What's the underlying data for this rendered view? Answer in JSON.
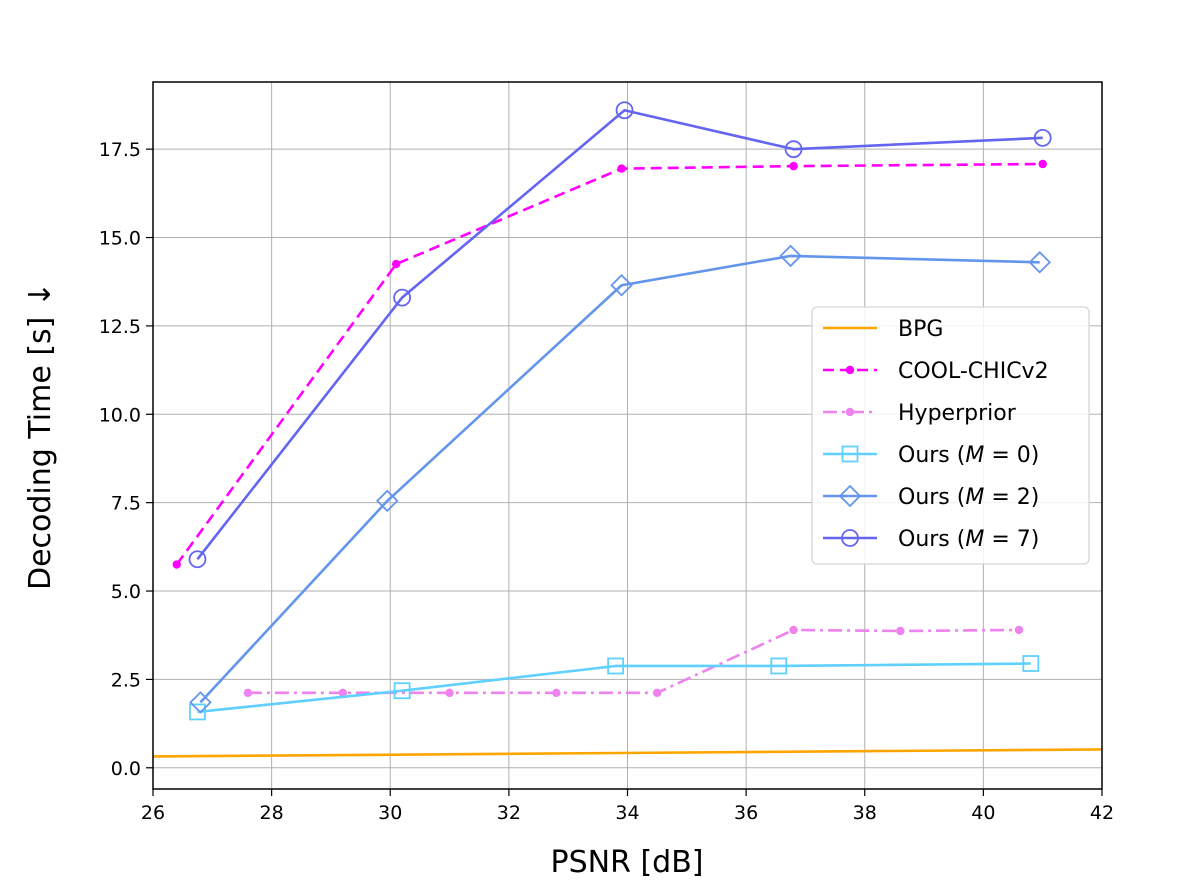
{
  "chart_data": {
    "type": "line",
    "title": "",
    "xlabel": "PSNR [dB]",
    "ylabel": "Decoding Time [s]  ↓",
    "xlim": [
      26,
      42
    ],
    "ylim": [
      -0.6,
      19.4
    ],
    "xticks": [
      26,
      28,
      30,
      32,
      34,
      36,
      38,
      40,
      42
    ],
    "xtick_labels": [
      "26",
      "28",
      "30",
      "32",
      "34",
      "36",
      "38",
      "40",
      "42"
    ],
    "yticks": [
      0,
      2.5,
      5,
      7.5,
      10,
      12.5,
      15,
      17.5
    ],
    "ytick_labels": [
      "0.0",
      "2.5",
      "5.0",
      "7.5",
      "10.0",
      "12.5",
      "15.0",
      "17.5"
    ],
    "grid": true,
    "legend_position": "center-right",
    "series": [
      {
        "name": "BPG",
        "legend_label": "BPG",
        "color": "#ffa500",
        "line_style": "solid",
        "marker": "none",
        "x": [
          26.0,
          42.0
        ],
        "y": [
          0.32,
          0.52
        ]
      },
      {
        "name": "COOL-CHICv2",
        "legend_label": "COOL-CHICv2",
        "color": "#ff00ff",
        "line_style": "dashed",
        "marker": "dot",
        "x": [
          26.4,
          30.1,
          33.9,
          36.8,
          41.0
        ],
        "y": [
          5.75,
          14.25,
          16.95,
          17.02,
          17.08
        ]
      },
      {
        "name": "Hyperprior",
        "legend_label": "Hyperprior",
        "color": "#ee82ee",
        "line_style": "dashdot",
        "marker": "dot",
        "x": [
          27.6,
          29.2,
          31.0,
          32.8,
          34.5,
          36.8,
          38.6,
          40.6
        ],
        "y": [
          2.12,
          2.12,
          2.12,
          2.12,
          2.12,
          3.9,
          3.87,
          3.9
        ]
      },
      {
        "name": "Ours (M=0)",
        "legend_prefix": "Ours (",
        "legend_var": "M",
        "legend_suffix": " = 0)",
        "color": "#5fd0ff",
        "line_style": "solid",
        "marker": "square",
        "x": [
          26.75,
          30.2,
          33.8,
          36.55,
          40.8
        ],
        "y": [
          1.58,
          2.18,
          2.88,
          2.88,
          2.95
        ]
      },
      {
        "name": "Ours (M=2)",
        "legend_prefix": "Ours (",
        "legend_var": "M",
        "legend_suffix": " = 2)",
        "color": "#6495ed",
        "line_style": "solid",
        "marker": "diamond",
        "x": [
          26.8,
          29.95,
          33.9,
          36.75,
          40.95
        ],
        "y": [
          1.85,
          7.55,
          13.65,
          14.48,
          14.3
        ]
      },
      {
        "name": "Ours (M=7)",
        "legend_prefix": "Ours (",
        "legend_var": "M",
        "legend_suffix": " = 7)",
        "color": "#6465f0",
        "line_style": "solid",
        "marker": "circle",
        "x": [
          26.75,
          30.2,
          33.95,
          36.8,
          41.0
        ],
        "y": [
          5.9,
          13.3,
          18.6,
          17.5,
          17.82
        ]
      }
    ]
  }
}
